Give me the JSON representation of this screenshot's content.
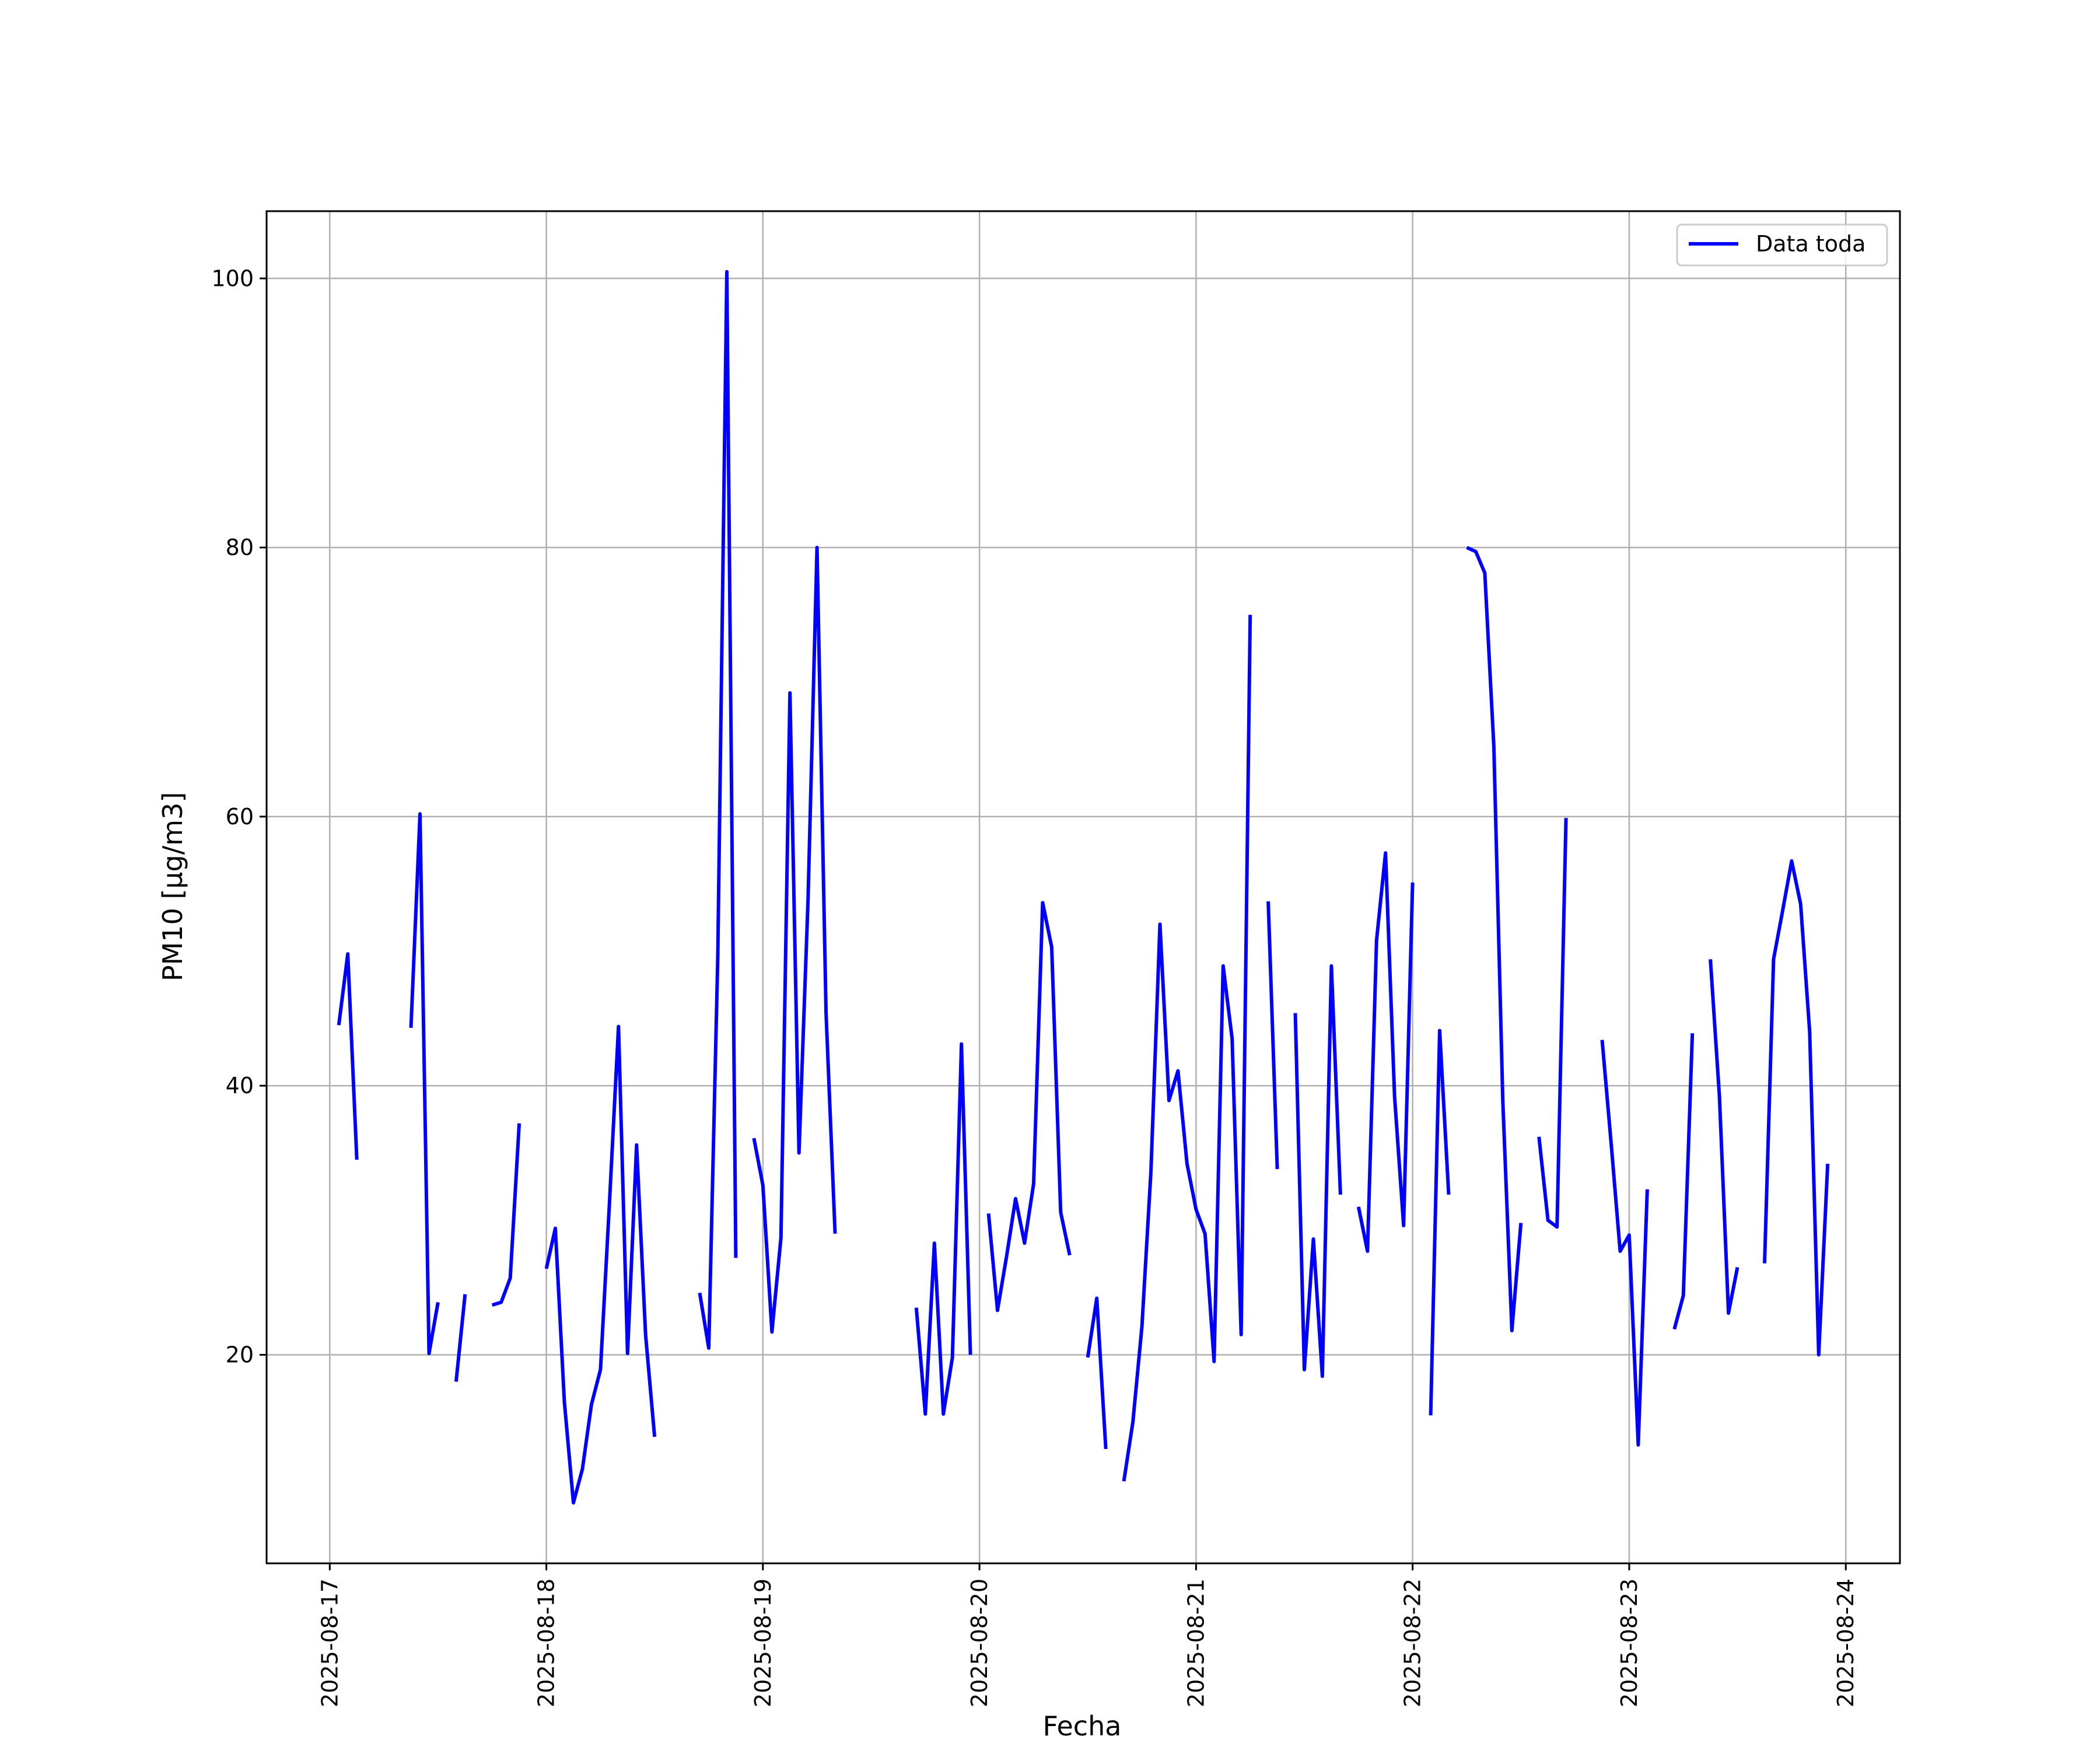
{
  "chart_data": {
    "type": "line",
    "xlabel": "Fecha",
    "ylabel": "PM10 [μg/m3]",
    "xlim": [
      "2025-08-16 17:00",
      "2025-08-24 06:00"
    ],
    "ylim": [
      4.5,
      105
    ],
    "x_ticks": [
      "2025-08-17",
      "2025-08-18",
      "2025-08-19",
      "2025-08-20",
      "2025-08-21",
      "2025-08-22",
      "2025-08-23",
      "2025-08-24"
    ],
    "y_ticks": [
      20,
      40,
      60,
      80,
      100
    ],
    "grid": true,
    "legend_position": "upper right",
    "series": [
      {
        "name": "Data toda",
        "color": "#0000ff",
        "segments": [
          [
            [
              "2025-08-17 01:00",
              44.5
            ],
            [
              "2025-08-17 02:00",
              49.8
            ],
            [
              "2025-08-17 03:00",
              34.5
            ]
          ],
          [
            [
              "2025-08-17 09:00",
              44.3
            ],
            [
              "2025-08-17 10:00",
              60.2
            ],
            [
              "2025-08-17 11:00",
              20.1
            ],
            [
              "2025-08-17 12:00",
              23.9
            ]
          ],
          [
            [
              "2025-08-17 14:00",
              18.0
            ],
            [
              "2025-08-17 15:00",
              24.5
            ]
          ],
          [
            [
              "2025-08-17 18:00",
              23.7
            ],
            [
              "2025-08-17 19:00",
              23.9
            ],
            [
              "2025-08-17 20:00",
              25.7
            ],
            [
              "2025-08-17 21:00",
              37.2
            ]
          ],
          [
            [
              "2025-08-18 00:00",
              26.4
            ],
            [
              "2025-08-18 01:00",
              29.4
            ],
            [
              "2025-08-18 02:00",
              16.5
            ],
            [
              "2025-08-18 03:00",
              9.0
            ],
            [
              "2025-08-18 04:00",
              11.5
            ],
            [
              "2025-08-18 05:00",
              16.3
            ],
            [
              "2025-08-18 06:00",
              18.9
            ],
            [
              "2025-08-18 07:00",
              31.3
            ],
            [
              "2025-08-18 08:00",
              44.4
            ],
            [
              "2025-08-18 09:00",
              20.1
            ],
            [
              "2025-08-18 10:00",
              35.6
            ],
            [
              "2025-08-18 11:00",
              21.5
            ],
            [
              "2025-08-18 12:00",
              13.9
            ]
          ],
          [
            [
              "2025-08-18 17:00",
              24.6
            ],
            [
              "2025-08-18 18:00",
              20.5
            ],
            [
              "2025-08-18 19:00",
              49.6
            ],
            [
              "2025-08-18 20:00",
              100.5
            ],
            [
              "2025-08-18 21:00",
              27.2
            ]
          ],
          [
            [
              "2025-08-18 23:00",
              36.1
            ],
            [
              "2025-08-19 00:00",
              32.6
            ],
            [
              "2025-08-19 01:00",
              21.7
            ],
            [
              "2025-08-19 02:00",
              28.7
            ],
            [
              "2025-08-19 03:00",
              69.2
            ],
            [
              "2025-08-19 04:00",
              35.0
            ],
            [
              "2025-08-19 05:00",
              53.8
            ],
            [
              "2025-08-19 06:00",
              80.0
            ],
            [
              "2025-08-19 07:00",
              45.4
            ],
            [
              "2025-08-19 08:00",
              29.0
            ]
          ],
          [
            [
              "2025-08-19 17:00",
              23.5
            ],
            [
              "2025-08-19 18:00",
              15.6
            ],
            [
              "2025-08-19 19:00",
              28.3
            ],
            [
              "2025-08-19 20:00",
              15.6
            ],
            [
              "2025-08-19 21:00",
              19.8
            ],
            [
              "2025-08-19 22:00",
              43.1
            ],
            [
              "2025-08-19 23:00",
              20.0
            ]
          ],
          [
            [
              "2025-08-20 01:00",
              30.5
            ],
            [
              "2025-08-20 02:00",
              23.3
            ],
            [
              "2025-08-20 03:00",
              27.3
            ],
            [
              "2025-08-20 04:00",
              31.6
            ],
            [
              "2025-08-20 05:00",
              28.3
            ],
            [
              "2025-08-20 06:00",
              32.7
            ],
            [
              "2025-08-20 07:00",
              53.6
            ],
            [
              "2025-08-20 08:00",
              50.3
            ],
            [
              "2025-08-20 09:00",
              30.6
            ],
            [
              "2025-08-20 10:00",
              27.4
            ]
          ],
          [
            [
              "2025-08-20 12:00",
              19.8
            ],
            [
              "2025-08-20 13:00",
              24.2
            ],
            [
              "2025-08-20 14:00",
              13.0
            ]
          ],
          [
            [
              "2025-08-20 16:00",
              10.6
            ],
            [
              "2025-08-20 17:00",
              15.0
            ],
            [
              "2025-08-20 18:00",
              22.1
            ],
            [
              "2025-08-20 19:00",
              33.6
            ],
            [
              "2025-08-20 20:00",
              52.0
            ],
            [
              "2025-08-20 21:00",
              38.9
            ],
            [
              "2025-08-20 22:00",
              41.1
            ],
            [
              "2025-08-20 23:00",
              34.2
            ],
            [
              "2025-08-21 00:00",
              30.8
            ],
            [
              "2025-08-21 01:00",
              29.0
            ],
            [
              "2025-08-21 02:00",
              19.5
            ],
            [
              "2025-08-21 03:00",
              48.9
            ],
            [
              "2025-08-21 04:00",
              43.5
            ],
            [
              "2025-08-21 05:00",
              21.5
            ],
            [
              "2025-08-21 06:00",
              75.0
            ]
          ],
          [
            [
              "2025-08-21 08:00",
              53.7
            ],
            [
              "2025-08-21 09:00",
              33.8
            ]
          ],
          [
            [
              "2025-08-21 11:00",
              45.4
            ],
            [
              "2025-08-21 12:00",
              18.9
            ],
            [
              "2025-08-21 13:00",
              28.6
            ],
            [
              "2025-08-21 14:00",
              18.4
            ],
            [
              "2025-08-21 15:00",
              48.9
            ],
            [
              "2025-08-21 16:00",
              31.9
            ]
          ],
          [
            [
              "2025-08-21 18:00",
              31.0
            ],
            [
              "2025-08-21 19:00",
              27.7
            ],
            [
              "2025-08-21 20:00",
              50.8
            ],
            [
              "2025-08-21 21:00",
              57.3
            ],
            [
              "2025-08-21 22:00",
              39.2
            ],
            [
              "2025-08-21 23:00",
              29.6
            ],
            [
              "2025-08-22 00:00",
              55.1
            ]
          ],
          [
            [
              "2025-08-22 02:00",
              15.5
            ],
            [
              "2025-08-22 03:00",
              44.1
            ],
            [
              "2025-08-22 04:00",
              31.9
            ]
          ],
          [
            [
              "2025-08-22 06:00",
              80.0
            ],
            [
              "2025-08-22 07:00",
              79.7
            ],
            [
              "2025-08-22 08:00",
              78.1
            ],
            [
              "2025-08-22 09:00",
              65.2
            ],
            [
              "2025-08-22 10:00",
              38.8
            ],
            [
              "2025-08-22 11:00",
              21.8
            ],
            [
              "2025-08-22 12:00",
              29.8
            ]
          ],
          [
            [
              "2025-08-22 14:00",
              36.2
            ],
            [
              "2025-08-22 15:00",
              30.0
            ],
            [
              "2025-08-22 16:00",
              29.5
            ],
            [
              "2025-08-22 17:00",
              59.9
            ]
          ],
          [
            [
              "2025-08-22 21:00",
              43.4
            ],
            [
              "2025-08-22 22:00",
              35.7
            ],
            [
              "2025-08-22 23:00",
              27.7
            ],
            [
              "2025-08-23 00:00",
              28.9
            ],
            [
              "2025-08-23 01:00",
              13.3
            ],
            [
              "2025-08-23 02:00",
              32.3
            ]
          ],
          [
            [
              "2025-08-23 05:00",
              21.9
            ],
            [
              "2025-08-23 06:00",
              24.4
            ],
            [
              "2025-08-23 07:00",
              43.9
            ]
          ],
          [
            [
              "2025-08-23 09:00",
              49.4
            ],
            [
              "2025-08-23 10:00",
              39.2
            ],
            [
              "2025-08-23 11:00",
              23.1
            ],
            [
              "2025-08-23 12:00",
              26.5
            ]
          ],
          [
            [
              "2025-08-23 15:00",
              26.8
            ],
            [
              "2025-08-23 16:00",
              49.4
            ],
            [
              "2025-08-23 17:00",
              53.0
            ],
            [
              "2025-08-23 18:00",
              56.7
            ],
            [
              "2025-08-23 19:00",
              53.5
            ],
            [
              "2025-08-23 20:00",
              44.0
            ],
            [
              "2025-08-23 21:00",
              20.0
            ],
            [
              "2025-08-23 22:00",
              34.2
            ]
          ]
        ]
      }
    ]
  }
}
